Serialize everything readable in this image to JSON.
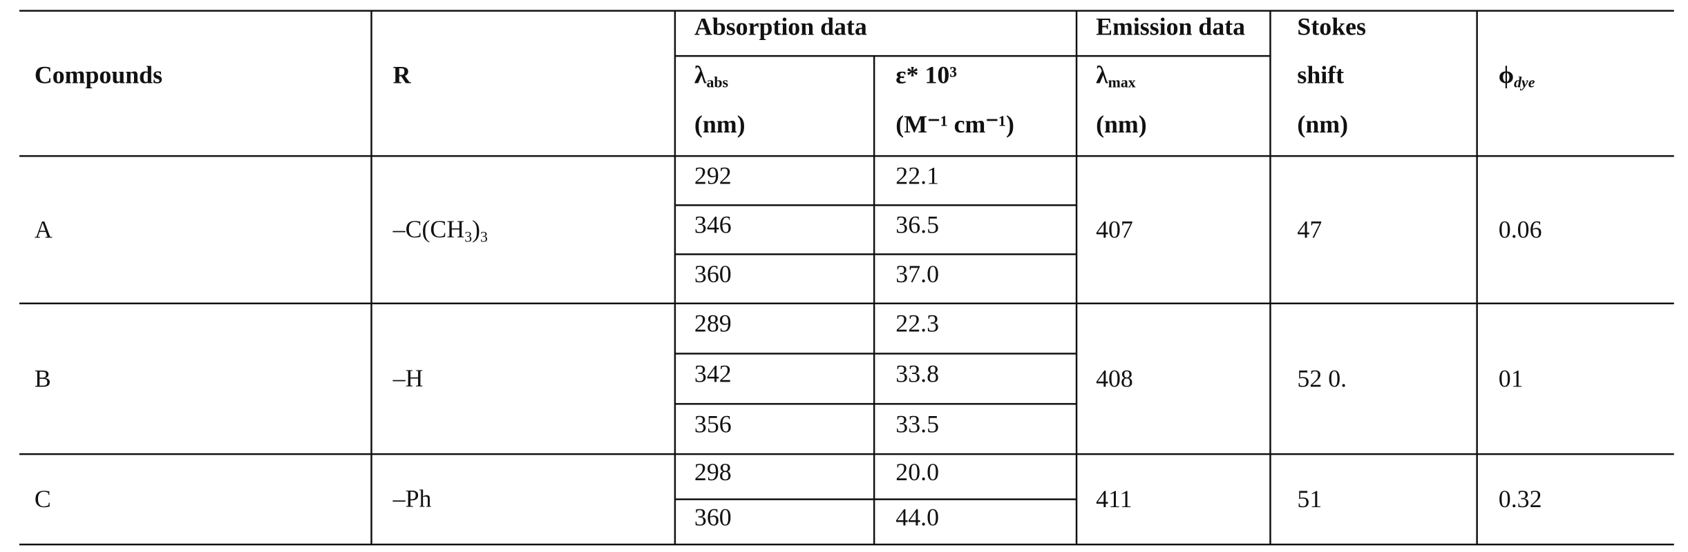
{
  "header": {
    "compounds": "Compounds",
    "r": "R",
    "absorption": "Absorption data",
    "lambda_abs": {
      "symbol": "λ",
      "sub": "abs",
      "unit": "(nm)"
    },
    "epsilon": {
      "text": "ε* 10³",
      "unit": "(M⁻¹ cm⁻¹)"
    },
    "emission": "Emission data",
    "lambda_max": {
      "symbol": "λ",
      "sub": "max",
      "unit": "(nm)"
    },
    "stokes": [
      "Stokes",
      "shift",
      "(nm)"
    ],
    "phi": {
      "symbol": "ϕ",
      "sub": "dye"
    }
  },
  "table": {
    "rows": [
      {
        "compound": "A",
        "r": [
          "–C(CH",
          "3",
          ")",
          "3"
        ],
        "absorption": [
          [
            "292",
            "22.1"
          ],
          [
            "346",
            "36.5"
          ],
          [
            "360",
            "37.0"
          ]
        ],
        "emission": "407",
        "stokes": "47",
        "phi": "0.06"
      },
      {
        "compound": "B",
        "r": [
          "–H"
        ],
        "absorption": [
          [
            "289",
            "22.3"
          ],
          [
            "342",
            "33.8"
          ],
          [
            "356",
            "33.5"
          ]
        ],
        "emission": "408",
        "stokes": "52 0.",
        "phi": "01"
      },
      {
        "compound": "C",
        "r": [
          "–Ph"
        ],
        "absorption": [
          [
            "298",
            "20.0"
          ],
          [
            "360",
            "44.0"
          ]
        ],
        "emission": "411",
        "stokes": "51",
        "phi": "0.32"
      }
    ]
  }
}
